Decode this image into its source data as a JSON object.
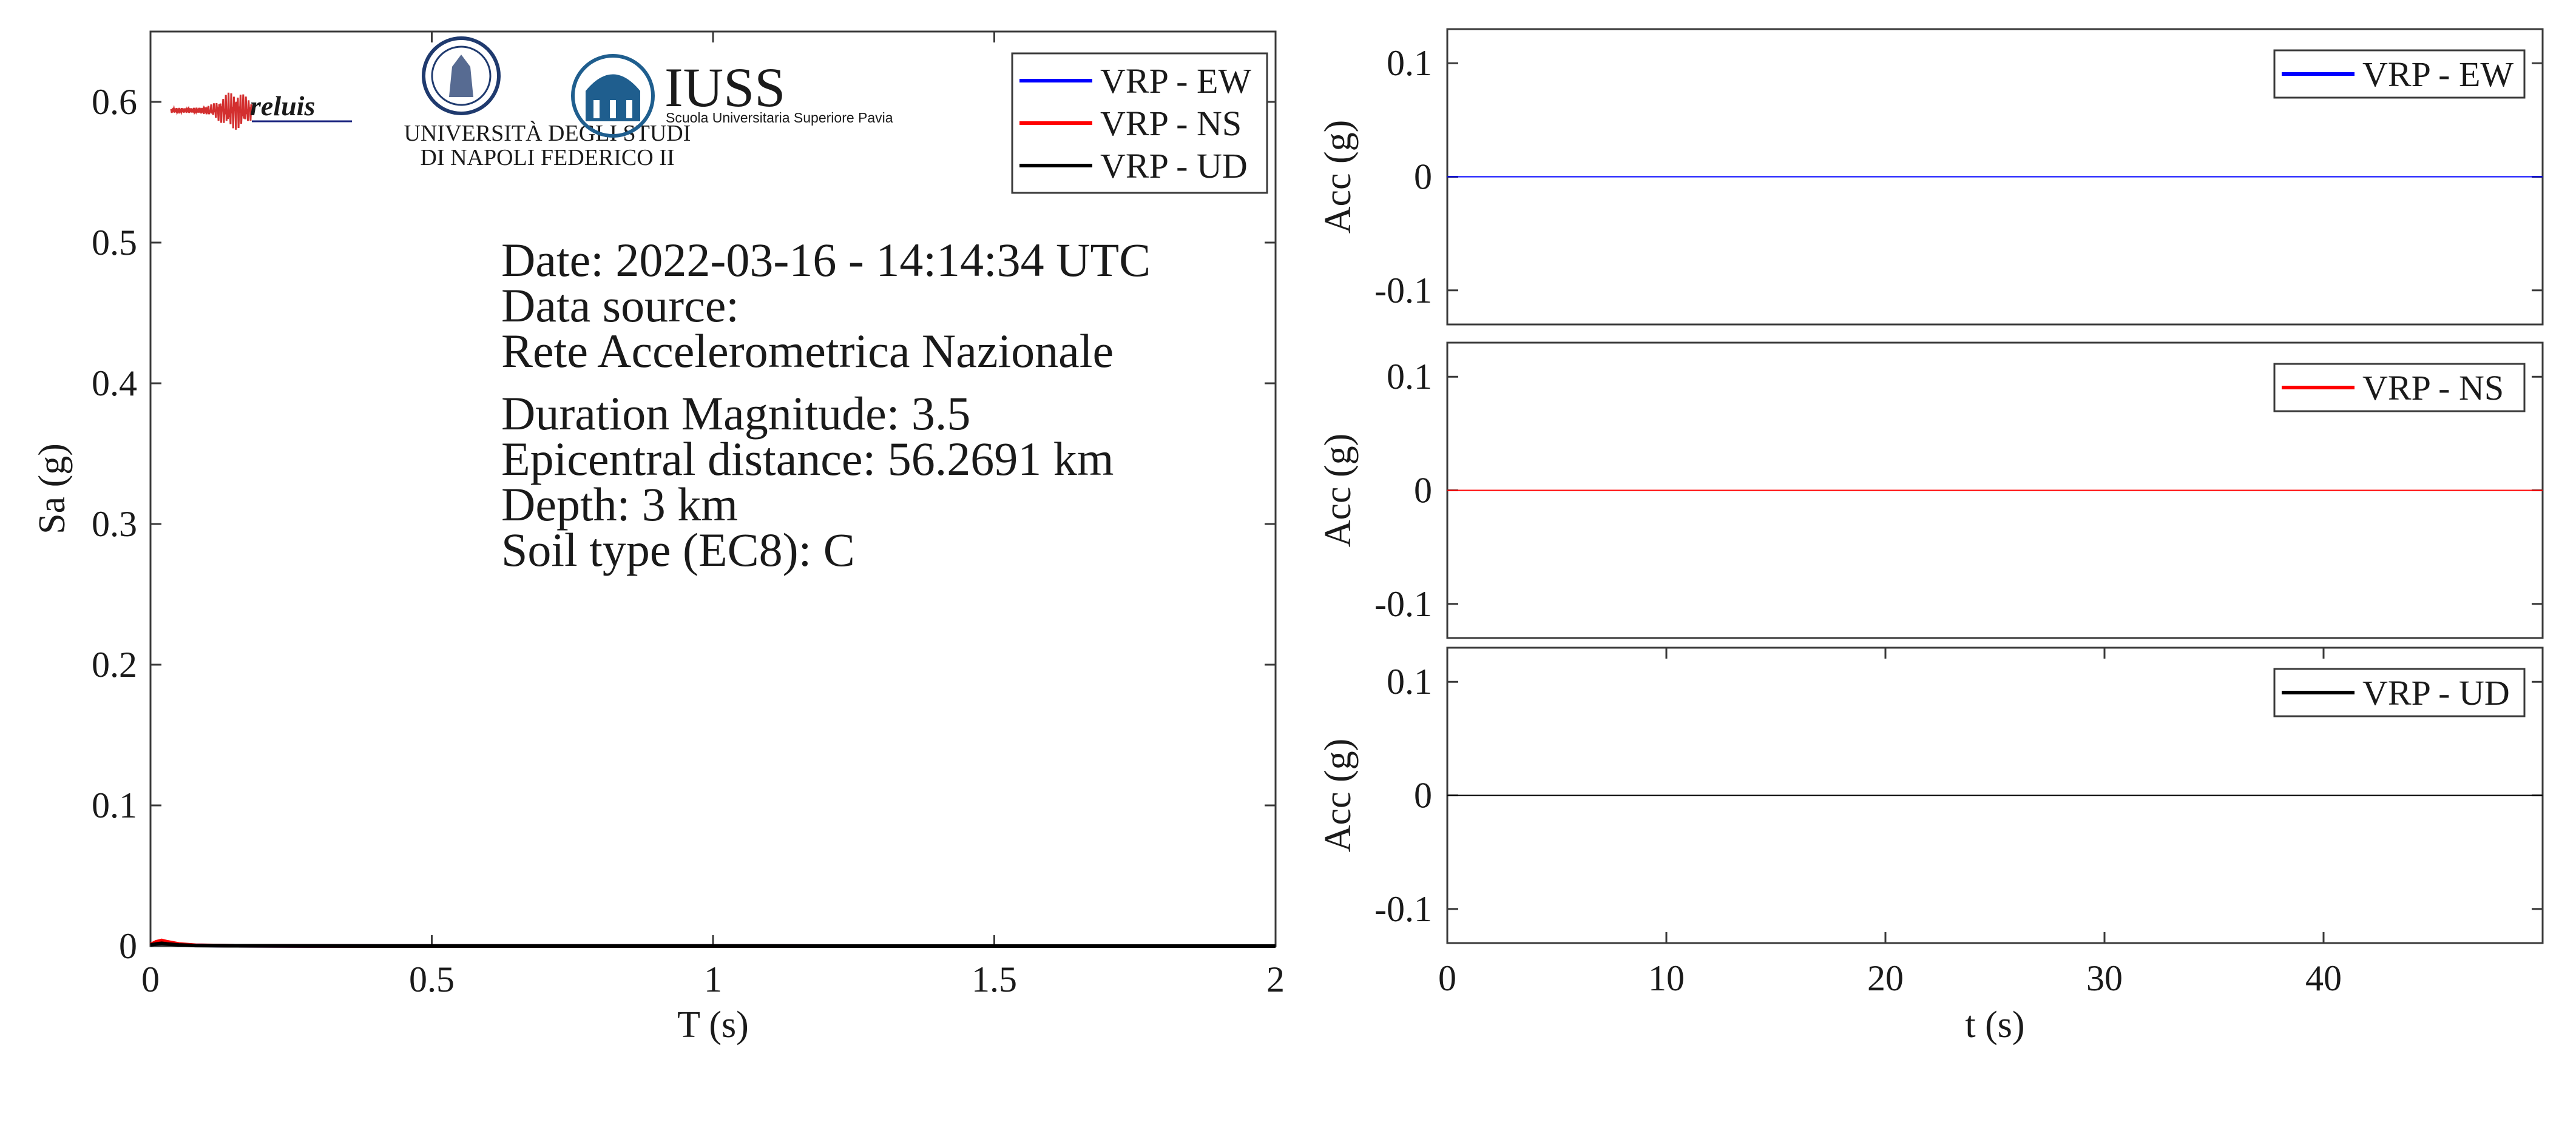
{
  "chart_data": [
    {
      "type": "line",
      "xlabel": "T (s)",
      "ylabel": "Sa (g)",
      "xlim": [
        0,
        2
      ],
      "ylim": [
        0,
        0.65
      ],
      "xticks": [
        {
          "value": 0,
          "label": "0"
        },
        {
          "value": 0.5,
          "label": "0.5"
        },
        {
          "value": 1,
          "label": "1"
        },
        {
          "value": 1.5,
          "label": "1.5"
        },
        {
          "value": 2,
          "label": "2"
        }
      ],
      "yticks": [
        {
          "value": 0,
          "label": "0"
        },
        {
          "value": 0.1,
          "label": "0.1"
        },
        {
          "value": 0.2,
          "label": "0.2"
        },
        {
          "value": 0.3,
          "label": "0.3"
        },
        {
          "value": 0.4,
          "label": "0.4"
        },
        {
          "value": 0.5,
          "label": "0.5"
        },
        {
          "value": 0.6,
          "label": "0.6"
        }
      ],
      "grid": false,
      "legend_position": "top-right",
      "series": [
        {
          "name": "VRP - EW",
          "color": "#0000ff",
          "x": [
            0,
            0.01,
            0.02,
            0.03,
            0.05,
            0.08,
            0.15,
            0.3,
            0.6,
            1.0,
            1.5,
            2.0
          ],
          "y": [
            0.001,
            0.002,
            0.003,
            0.002,
            0.001,
            0.0005,
            0.0002,
            0.0001,
            5e-05,
            3e-05,
            2e-05,
            1e-05
          ]
        },
        {
          "name": "VRP - NS",
          "color": "#ff0000",
          "x": [
            0,
            0.01,
            0.02,
            0.03,
            0.05,
            0.08,
            0.15,
            0.3,
            0.6,
            1.0,
            1.5,
            2.0
          ],
          "y": [
            0.001,
            0.003,
            0.004,
            0.003,
            0.0015,
            0.0006,
            0.0002,
            0.0001,
            5e-05,
            3e-05,
            2e-05,
            1e-05
          ]
        },
        {
          "name": "VRP - UD",
          "color": "#000000",
          "x": [
            0,
            0.01,
            0.02,
            0.03,
            0.05,
            0.08,
            0.15,
            0.3,
            0.6,
            1.0,
            1.5,
            2.0
          ],
          "y": [
            0.0008,
            0.0015,
            0.002,
            0.0015,
            0.0008,
            0.0004,
            0.0002,
            0.0001,
            5e-05,
            3e-05,
            2e-05,
            1e-05
          ]
        }
      ],
      "annotations": [
        "Date: 2022-03-16 - 14:14:34 UTC",
        "Data source:",
        "Rete Accelerometrica Nazionale",
        "Duration Magnitude: 3.5",
        "Epicentral distance: 56.2691 km",
        "Depth: 3 km",
        "Soil type (EC8): C"
      ]
    },
    {
      "type": "line",
      "xlabel": "",
      "ylabel": "Acc (g)",
      "xlim": [
        0,
        50
      ],
      "ylim": [
        -0.13,
        0.13
      ],
      "yticks": [
        {
          "value": 0.1,
          "label": "0.1"
        },
        {
          "value": 0,
          "label": "0"
        },
        {
          "value": -0.1,
          "label": "-0.1"
        }
      ],
      "legend_position": "top-right",
      "series": [
        {
          "name": "VRP - EW",
          "color": "#0000ff",
          "x": [
            0,
            50
          ],
          "y": [
            0,
            0
          ]
        }
      ]
    },
    {
      "type": "line",
      "xlabel": "",
      "ylabel": "Acc (g)",
      "xlim": [
        0,
        50
      ],
      "ylim": [
        -0.13,
        0.13
      ],
      "yticks": [
        {
          "value": 0.1,
          "label": "0.1"
        },
        {
          "value": 0,
          "label": "0"
        },
        {
          "value": -0.1,
          "label": "-0.1"
        }
      ],
      "legend_position": "top-right",
      "series": [
        {
          "name": "VRP - NS",
          "color": "#ff0000",
          "x": [
            0,
            50
          ],
          "y": [
            0,
            0
          ]
        }
      ]
    },
    {
      "type": "line",
      "xlabel": "t (s)",
      "ylabel": "Acc (g)",
      "xlim": [
        0,
        50
      ],
      "ylim": [
        -0.13,
        0.13
      ],
      "xticks": [
        {
          "value": 0,
          "label": "0"
        },
        {
          "value": 10,
          "label": "10"
        },
        {
          "value": 20,
          "label": "20"
        },
        {
          "value": 30,
          "label": "30"
        },
        {
          "value": 40,
          "label": "40"
        }
      ],
      "yticks": [
        {
          "value": 0.1,
          "label": "0.1"
        },
        {
          "value": 0,
          "label": "0"
        },
        {
          "value": -0.1,
          "label": "-0.1"
        }
      ],
      "legend_position": "top-right",
      "series": [
        {
          "name": "VRP - UD",
          "color": "#000000",
          "x": [
            0,
            50
          ],
          "y": [
            0,
            0
          ]
        }
      ]
    }
  ],
  "logos": {
    "reluis": {
      "text": "reluis",
      "color": "#1a237e",
      "signal_color": "#d32f2f"
    },
    "unina": {
      "line1": "UNIVERSITÀ DEGLI STUDI",
      "line2": "DI NAPOLI FEDERICO II",
      "color": "#1f3a6e"
    },
    "iuss": {
      "title": "IUSS",
      "subtitle": "Scuola Universitaria Superiore Pavia",
      "color": "#1f5e8e"
    }
  }
}
